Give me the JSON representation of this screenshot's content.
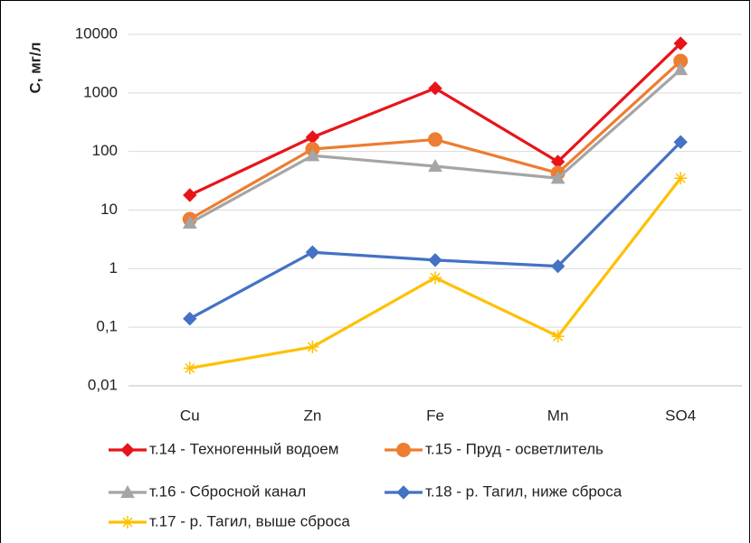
{
  "chart_data": {
    "type": "line",
    "y_label": "С, мг/л",
    "log_scale": true,
    "grid": true,
    "categories": [
      "Cu",
      "Zn",
      "Fe",
      "Mn",
      "SO4"
    ],
    "ylim": [
      0.01,
      10000
    ],
    "yticks": [
      {
        "value": 0.01,
        "label": "0,01"
      },
      {
        "value": 0.1,
        "label": "0,1"
      },
      1,
      10,
      100,
      1000,
      10000
    ],
    "series": [
      {
        "name": "т.14 - Техногенный водоем",
        "color": "#e8141a",
        "marker": "diamond",
        "values": [
          18,
          175,
          1200,
          67,
          7000
        ]
      },
      {
        "name": "т.15 - Пруд - осветлитель",
        "color": "#ed7d31",
        "marker": "circle",
        "values": [
          7,
          110,
          160,
          43,
          3500
        ]
      },
      {
        "name": "т.16 - Сбросной канал",
        "color": "#a5a5a5",
        "marker": "triangle",
        "values": [
          6,
          85,
          56,
          35,
          2500
        ]
      },
      {
        "name": "т.18 - р. Тагил, ниже сброса",
        "color": "#4472c4",
        "marker": "diamond",
        "values": [
          0.14,
          1.9,
          1.4,
          1.1,
          145
        ]
      },
      {
        "name": "т.17 - р. Тагил, выше сброса",
        "color": "#ffc000",
        "marker": "star",
        "values": [
          0.02,
          0.046,
          0.7,
          0.07,
          35
        ]
      }
    ]
  }
}
